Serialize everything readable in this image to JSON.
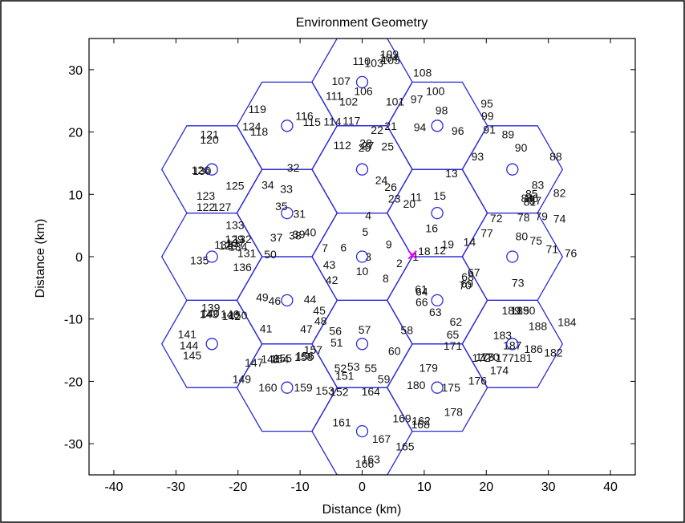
{
  "chart_data": {
    "type": "scatter",
    "title": "Environment Geometry",
    "xlabel": "Distance (km)",
    "ylabel": "Distance (km)",
    "xlim": [
      -44,
      44
    ],
    "ylim": [
      -35,
      35
    ],
    "xticks": [
      -40,
      -30,
      -20,
      -10,
      0,
      10,
      20,
      30,
      40
    ],
    "yticks": [
      -30,
      -20,
      -10,
      0,
      10,
      20,
      30
    ],
    "grid": false,
    "colors": {
      "cells": "#2a2ad8",
      "highlight": "#ff00ff",
      "text": "#111111"
    },
    "cell_centers": [
      [
        0,
        0
      ],
      [
        0,
        14
      ],
      [
        12.1,
        7
      ],
      [
        12.1,
        -7
      ],
      [
        0,
        -14
      ],
      [
        -12.1,
        -7
      ],
      [
        -12.1,
        7
      ],
      [
        0,
        28
      ],
      [
        12.1,
        21
      ],
      [
        24.2,
        14
      ],
      [
        24.2,
        0
      ],
      [
        24.2,
        -14
      ],
      [
        12.1,
        -21
      ],
      [
        0,
        -28
      ],
      [
        -12.1,
        -21
      ],
      [
        -24.2,
        -14
      ],
      [
        -24.2,
        0
      ],
      [
        -24.2,
        14
      ],
      [
        -12.1,
        21
      ]
    ],
    "hex_radius_km": 8.083,
    "highlight_point": {
      "x": 8.1,
      "y": 0.3
    },
    "labels": [
      {
        "t": "1",
        "x": 8.6,
        "y": 0
      },
      {
        "t": "2",
        "x": 6,
        "y": -1
      },
      {
        "t": "3",
        "x": 1,
        "y": 0
      },
      {
        "t": "4",
        "x": 1,
        "y": 6.6
      },
      {
        "t": "5",
        "x": 0.5,
        "y": 4
      },
      {
        "t": "6",
        "x": -3,
        "y": 1.5
      },
      {
        "t": "7",
        "x": -6,
        "y": 1.4
      },
      {
        "t": "8",
        "x": 3.8,
        "y": -3.5
      },
      {
        "t": "9",
        "x": 4.3,
        "y": 2
      },
      {
        "t": "10",
        "x": 0,
        "y": -2.3
      },
      {
        "t": "11",
        "x": 8.7,
        "y": 9.6
      },
      {
        "t": "12",
        "x": 12.5,
        "y": 1
      },
      {
        "t": "13",
        "x": 14.4,
        "y": 13.4
      },
      {
        "t": "14",
        "x": 17.3,
        "y": 2.4
      },
      {
        "t": "15",
        "x": 12.5,
        "y": 9.8
      },
      {
        "t": "16",
        "x": 11.2,
        "y": 4.6
      },
      {
        "t": "18",
        "x": 10,
        "y": 0.9
      },
      {
        "t": "19",
        "x": 13.8,
        "y": 2
      },
      {
        "t": "20",
        "x": 7.6,
        "y": 8.5
      },
      {
        "t": "21",
        "x": 4.6,
        "y": 21
      },
      {
        "t": "22",
        "x": 2.4,
        "y": 20.3
      },
      {
        "t": "23",
        "x": 5.2,
        "y": 9.3
      },
      {
        "t": "24",
        "x": 3.1,
        "y": 12.3
      },
      {
        "t": "25",
        "x": 4.1,
        "y": 17.7
      },
      {
        "t": "26",
        "x": 4.6,
        "y": 11.2
      },
      {
        "t": "27",
        "x": 0.9,
        "y": 17.8
      },
      {
        "t": "28",
        "x": 0.6,
        "y": 18.2
      },
      {
        "t": "29",
        "x": 0.4,
        "y": 17.5
      },
      {
        "t": "31",
        "x": -10.1,
        "y": 6.9
      },
      {
        "t": "32",
        "x": -11.1,
        "y": 14.3
      },
      {
        "t": "33",
        "x": -12.2,
        "y": 10.9
      },
      {
        "t": "34",
        "x": -15.2,
        "y": 11.5
      },
      {
        "t": "35",
        "x": -13,
        "y": 8.1
      },
      {
        "t": "37",
        "x": -13.8,
        "y": 3.1
      },
      {
        "t": "38",
        "x": -10.8,
        "y": 3.4
      },
      {
        "t": "39",
        "x": -10.2,
        "y": 3.6
      },
      {
        "t": "40",
        "x": -8.4,
        "y": 3.9
      },
      {
        "t": "41",
        "x": -15.5,
        "y": -11.5
      },
      {
        "t": "42",
        "x": -4.9,
        "y": -3.7
      },
      {
        "t": "43",
        "x": -5.3,
        "y": -1.3
      },
      {
        "t": "44",
        "x": -8.4,
        "y": -6.8
      },
      {
        "t": "45",
        "x": -6.9,
        "y": -8.6
      },
      {
        "t": "46",
        "x": -14.1,
        "y": -7.1
      },
      {
        "t": "47",
        "x": -9,
        "y": -11.6
      },
      {
        "t": "48",
        "x": -6.7,
        "y": -10.3
      },
      {
        "t": "49",
        "x": -16.1,
        "y": -6.5
      },
      {
        "t": "50",
        "x": -14.8,
        "y": 0.4
      },
      {
        "t": "51",
        "x": -4.1,
        "y": -13.8
      },
      {
        "t": "52",
        "x": -3.5,
        "y": -17.9
      },
      {
        "t": "53",
        "x": -1.4,
        "y": -17.6
      },
      {
        "t": "55",
        "x": 1.4,
        "y": -17.9
      },
      {
        "t": "56",
        "x": -4.3,
        "y": -11.9
      },
      {
        "t": "57",
        "x": 0.4,
        "y": -11.7
      },
      {
        "t": "58",
        "x": 7.2,
        "y": -11.8
      },
      {
        "t": "59",
        "x": 3.5,
        "y": -19.6
      },
      {
        "t": "60",
        "x": 5.2,
        "y": -15.1
      },
      {
        "t": "61",
        "x": 9.5,
        "y": -5.2
      },
      {
        "t": "62",
        "x": 15.1,
        "y": -10.4
      },
      {
        "t": "63",
        "x": 11.8,
        "y": -8.9
      },
      {
        "t": "64",
        "x": 9.6,
        "y": -5.6
      },
      {
        "t": "65",
        "x": 14.6,
        "y": -12.5
      },
      {
        "t": "66",
        "x": 9.6,
        "y": -7.3
      },
      {
        "t": "67",
        "x": 18,
        "y": -2.5
      },
      {
        "t": "68",
        "x": 17,
        "y": -3.2
      },
      {
        "t": "69",
        "x": 16.9,
        "y": -4.3
      },
      {
        "t": "70",
        "x": 16.6,
        "y": -4.6
      },
      {
        "t": "71",
        "x": 30.6,
        "y": 1.2
      },
      {
        "t": "72",
        "x": 21.6,
        "y": 6.2
      },
      {
        "t": "73",
        "x": 25.1,
        "y": -4.2
      },
      {
        "t": "74",
        "x": 31.8,
        "y": 6.1
      },
      {
        "t": "75",
        "x": 28,
        "y": 2.6
      },
      {
        "t": "76",
        "x": 33.6,
        "y": 0.6
      },
      {
        "t": "77",
        "x": 20.1,
        "y": 3.8
      },
      {
        "t": "78",
        "x": 26,
        "y": 6.3
      },
      {
        "t": "79",
        "x": 28.9,
        "y": 6.5
      },
      {
        "t": "80",
        "x": 25.7,
        "y": 3.3
      },
      {
        "t": "81",
        "x": 27,
        "y": 8.8
      },
      {
        "t": "82",
        "x": 31.8,
        "y": 10.2
      },
      {
        "t": "83",
        "x": 28.3,
        "y": 11.5
      },
      {
        "t": "84",
        "x": 26.6,
        "y": 9.4
      },
      {
        "t": "85",
        "x": 27.3,
        "y": 10.1
      },
      {
        "t": "86",
        "x": 27.4,
        "y": 9.4
      },
      {
        "t": "87",
        "x": 27.9,
        "y": 9
      },
      {
        "t": "88",
        "x": 31.2,
        "y": 16.1
      },
      {
        "t": "89",
        "x": 23.5,
        "y": 19.6
      },
      {
        "t": "90",
        "x": 25.6,
        "y": 17.5
      },
      {
        "t": "91",
        "x": 20.5,
        "y": 20.4
      },
      {
        "t": "93",
        "x": 18.6,
        "y": 16.1
      },
      {
        "t": "94",
        "x": 9.3,
        "y": 20.8
      },
      {
        "t": "95",
        "x": 20.1,
        "y": 24.6
      },
      {
        "t": "96",
        "x": 15.4,
        "y": 20.2
      },
      {
        "t": "97",
        "x": 8.8,
        "y": 25.3
      },
      {
        "t": "98",
        "x": 12.8,
        "y": 23.5
      },
      {
        "t": "99",
        "x": 20.2,
        "y": 22.6
      },
      {
        "t": "100",
        "x": 11.8,
        "y": 26.6
      },
      {
        "t": "101",
        "x": 5.3,
        "y": 24.9
      },
      {
        "t": "102",
        "x": -2.2,
        "y": 24.9
      },
      {
        "t": "103",
        "x": 1.9,
        "y": 31.1
      },
      {
        "t": "104",
        "x": 4.3,
        "y": 31.9
      },
      {
        "t": "105",
        "x": 4.6,
        "y": 31.5
      },
      {
        "t": "106",
        "x": 0.2,
        "y": 26.6
      },
      {
        "t": "107",
        "x": -3.4,
        "y": 28.2
      },
      {
        "t": "108",
        "x": 9.7,
        "y": 29.5
      },
      {
        "t": "109",
        "x": 4.4,
        "y": 32.5
      },
      {
        "t": "110",
        "x": -0.1,
        "y": 31.4
      },
      {
        "t": "111",
        "x": -4.5,
        "y": 25.8
      },
      {
        "t": "112",
        "x": -3.2,
        "y": 17.9
      },
      {
        "t": "114",
        "x": -4.8,
        "y": 21.7
      },
      {
        "t": "115",
        "x": -8.1,
        "y": 21.6
      },
      {
        "t": "116",
        "x": -9.3,
        "y": 22.6
      },
      {
        "t": "117",
        "x": -1.7,
        "y": 21.8
      },
      {
        "t": "118",
        "x": -16.6,
        "y": 20.1
      },
      {
        "t": "119",
        "x": -16.9,
        "y": 23.7
      },
      {
        "t": "120",
        "x": -24.6,
        "y": 18.8
      },
      {
        "t": "121",
        "x": -24.6,
        "y": 19.6
      },
      {
        "t": "122",
        "x": -25.2,
        "y": 8
      },
      {
        "t": "123",
        "x": -25.2,
        "y": 9.8
      },
      {
        "t": "124",
        "x": -17.8,
        "y": 20.9
      },
      {
        "t": "125",
        "x": -20.5,
        "y": 11.4
      },
      {
        "t": "126",
        "x": -26,
        "y": 13.9
      },
      {
        "t": "127",
        "x": -22.6,
        "y": 8
      },
      {
        "t": "128",
        "x": -21.6,
        "y": 1.8
      },
      {
        "t": "129",
        "x": -20.6,
        "y": 2.8
      },
      {
        "t": "130",
        "x": -25.8,
        "y": 13.8
      },
      {
        "t": "131",
        "x": -18.6,
        "y": 0.6
      },
      {
        "t": "132",
        "x": -19.3,
        "y": 2.8
      },
      {
        "t": "133",
        "x": -20.5,
        "y": 5.1
      },
      {
        "t": "134",
        "x": -20,
        "y": 1.6
      },
      {
        "t": "135",
        "x": -26.2,
        "y": -0.6
      },
      {
        "t": "136",
        "x": -19.3,
        "y": -1.7
      },
      {
        "t": "137",
        "x": -20.4,
        "y": 2.2
      },
      {
        "t": "138",
        "x": -22.3,
        "y": 1.9
      },
      {
        "t": "139",
        "x": -24.4,
        "y": -8.2
      },
      {
        "t": "140",
        "x": -24.5,
        "y": -9.1
      },
      {
        "t": "141",
        "x": -28.2,
        "y": -12.4
      },
      {
        "t": "142",
        "x": -21.1,
        "y": -9.5
      },
      {
        "t": "143",
        "x": -24.7,
        "y": -9.2
      },
      {
        "t": "144",
        "x": -27.9,
        "y": -14.2
      },
      {
        "t": "145",
        "x": -27.4,
        "y": -15.8
      },
      {
        "t": "146",
        "x": -21.3,
        "y": -9.2
      },
      {
        "t": "147",
        "x": -17.4,
        "y": -17
      },
      {
        "t": "148",
        "x": -14.8,
        "y": -16.4
      },
      {
        "t": "149",
        "x": -19.4,
        "y": -19.6
      },
      {
        "t": "150",
        "x": -20,
        "y": -9.4
      },
      {
        "t": "151",
        "x": -2.8,
        "y": -19.1
      },
      {
        "t": "152",
        "x": -3.7,
        "y": -21.7
      },
      {
        "t": "153",
        "x": -6,
        "y": -21.5
      },
      {
        "t": "154",
        "x": -13.3,
        "y": -16.4
      },
      {
        "t": "155",
        "x": -12.8,
        "y": -16.3
      },
      {
        "t": "156",
        "x": -9.2,
        "y": -15.9
      },
      {
        "t": "157",
        "x": -7.9,
        "y": -14.9
      },
      {
        "t": "158",
        "x": -9.4,
        "y": -16.1
      },
      {
        "t": "159",
        "x": -9.5,
        "y": -21
      },
      {
        "t": "160",
        "x": -15.2,
        "y": -21
      },
      {
        "t": "161",
        "x": -3.3,
        "y": -26.6
      },
      {
        "t": "162",
        "x": 9.5,
        "y": -26.3
      },
      {
        "t": "163",
        "x": 1.4,
        "y": -32.5
      },
      {
        "t": "164",
        "x": 1.4,
        "y": -21.6
      },
      {
        "t": "165",
        "x": 6.9,
        "y": -30.4
      },
      {
        "t": "166",
        "x": 0.4,
        "y": -33.2
      },
      {
        "t": "167",
        "x": 3.1,
        "y": -29.2
      },
      {
        "t": "168",
        "x": 9.4,
        "y": -26.9
      },
      {
        "t": "169",
        "x": 6.4,
        "y": -25.9
      },
      {
        "t": "170",
        "x": 20.6,
        "y": -16.1
      },
      {
        "t": "171",
        "x": 14.6,
        "y": -14.3
      },
      {
        "t": "172",
        "x": 19.2,
        "y": -16.2
      },
      {
        "t": "173",
        "x": 19.8,
        "y": -16.1
      },
      {
        "t": "174",
        "x": 22.1,
        "y": -18.2
      },
      {
        "t": "175",
        "x": 14.3,
        "y": -21
      },
      {
        "t": "176",
        "x": 18.6,
        "y": -19.9
      },
      {
        "t": "177",
        "x": 23,
        "y": -16.2
      },
      {
        "t": "178",
        "x": 14.7,
        "y": -24.9
      },
      {
        "t": "179",
        "x": 10.7,
        "y": -17.8
      },
      {
        "t": "180",
        "x": 8.7,
        "y": -20.6
      },
      {
        "t": "181",
        "x": 25.9,
        "y": -16.2
      },
      {
        "t": "182",
        "x": 30.8,
        "y": -15.4
      },
      {
        "t": "183",
        "x": 22.6,
        "y": -12.6
      },
      {
        "t": "184",
        "x": 33,
        "y": -10.5
      },
      {
        "t": "185",
        "x": 25.4,
        "y": -8.6
      },
      {
        "t": "186",
        "x": 27.6,
        "y": -14.8
      },
      {
        "t": "187",
        "x": 24.2,
        "y": -14.2
      },
      {
        "t": "188",
        "x": 28.3,
        "y": -11.1
      },
      {
        "t": "189",
        "x": 24,
        "y": -8.6
      },
      {
        "t": "190",
        "x": 26.4,
        "y": -8.6
      }
    ]
  }
}
